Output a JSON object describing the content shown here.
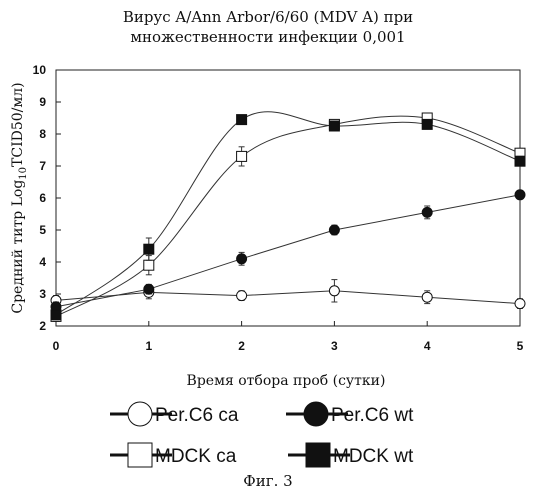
{
  "chart_data": {
    "type": "line",
    "title_lines": [
      "Вирус A/Ann Arbor/6/60 (MDV A) при",
      "множественности инфекции 0,001"
    ],
    "xlabel": "Время отбора проб (сутки)",
    "ylabel": {
      "prefix": "Средний титр Log",
      "sub": "10",
      "suffix": "TCID50/мл)"
    },
    "xlim": [
      0,
      5
    ],
    "ylim": [
      2,
      10
    ],
    "xticks": [
      "0",
      "1",
      "2",
      "3",
      "4",
      "5"
    ],
    "yticks": [
      "2",
      "3",
      "4",
      "5",
      "6",
      "7",
      "8",
      "9",
      "10"
    ],
    "grid": false,
    "legend_position": "bottom",
    "series": [
      {
        "name": "Per.C6 ca",
        "marker": "circle-open",
        "smooth": false,
        "x": [
          0,
          1,
          2,
          3,
          4,
          5
        ],
        "y": [
          2.8,
          3.05,
          2.95,
          3.1,
          2.9,
          2.7
        ],
        "err": [
          0.15,
          0.2,
          0.15,
          0.35,
          0.2,
          0.15
        ]
      },
      {
        "name": "Per.C6 wt",
        "marker": "circle-filled",
        "smooth": false,
        "x": [
          0,
          1,
          2,
          3,
          4,
          5
        ],
        "y": [
          2.6,
          3.15,
          4.1,
          5.0,
          5.55,
          6.1
        ],
        "err": [
          0.15,
          0.15,
          0.2,
          0.15,
          0.2,
          0.1
        ]
      },
      {
        "name": "MDCK ca",
        "marker": "square-open",
        "smooth": true,
        "x": [
          0,
          1,
          2,
          3,
          4,
          5
        ],
        "y": [
          2.3,
          3.9,
          7.3,
          8.3,
          8.5,
          7.4
        ],
        "err": [
          0.15,
          0.3,
          0.3,
          0.15,
          0.15,
          0.15
        ]
      },
      {
        "name": "MDCK wt",
        "marker": "square-filled",
        "smooth": true,
        "x": [
          0,
          1,
          2,
          3,
          4,
          5
        ],
        "y": [
          2.35,
          4.4,
          8.45,
          8.25,
          8.3,
          7.15
        ],
        "err": [
          0.15,
          0.35,
          0.1,
          0.1,
          0.1,
          0.15
        ]
      }
    ],
    "caption": "Фиг. 3"
  }
}
